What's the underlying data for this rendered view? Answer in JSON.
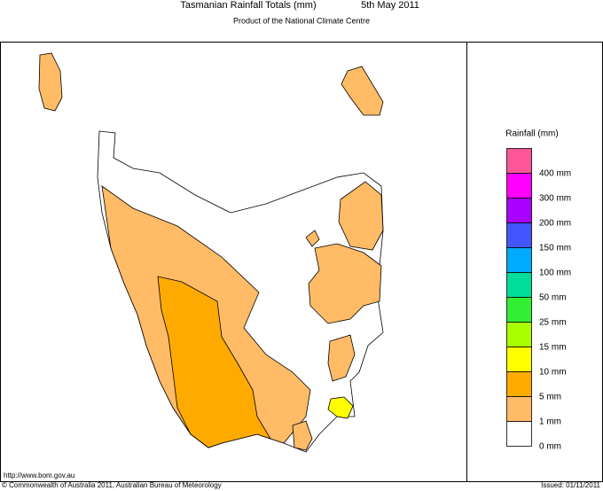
{
  "header": {
    "title": "Tasmanian Rainfall Totals (mm)",
    "date": "5th May 2011",
    "subtitle": "Product of the National Climate Centre"
  },
  "legend": {
    "title": "Rainfall (mm)",
    "colors": [
      "#ff5599",
      "#ff00ff",
      "#aa00ff",
      "#4455ff",
      "#00aaff",
      "#00dd99",
      "#33ee33",
      "#aaff00",
      "#ffff00",
      "#ffaa00",
      "#ffbb66",
      "#ffffff"
    ],
    "labels": [
      "400 mm",
      "300 mm",
      "200 mm",
      "150 mm",
      "100 mm",
      "50 mm",
      "25 mm",
      "15 mm",
      "10 mm",
      "5 mm",
      "1 mm",
      "0 mm"
    ]
  },
  "footer": {
    "url": "http://www.bom.gov.au",
    "copyright": "© Commonwealth of Australia 2011, Australian Bureau of Meteorology",
    "issued": "Issued: 01/11/2011"
  }
}
